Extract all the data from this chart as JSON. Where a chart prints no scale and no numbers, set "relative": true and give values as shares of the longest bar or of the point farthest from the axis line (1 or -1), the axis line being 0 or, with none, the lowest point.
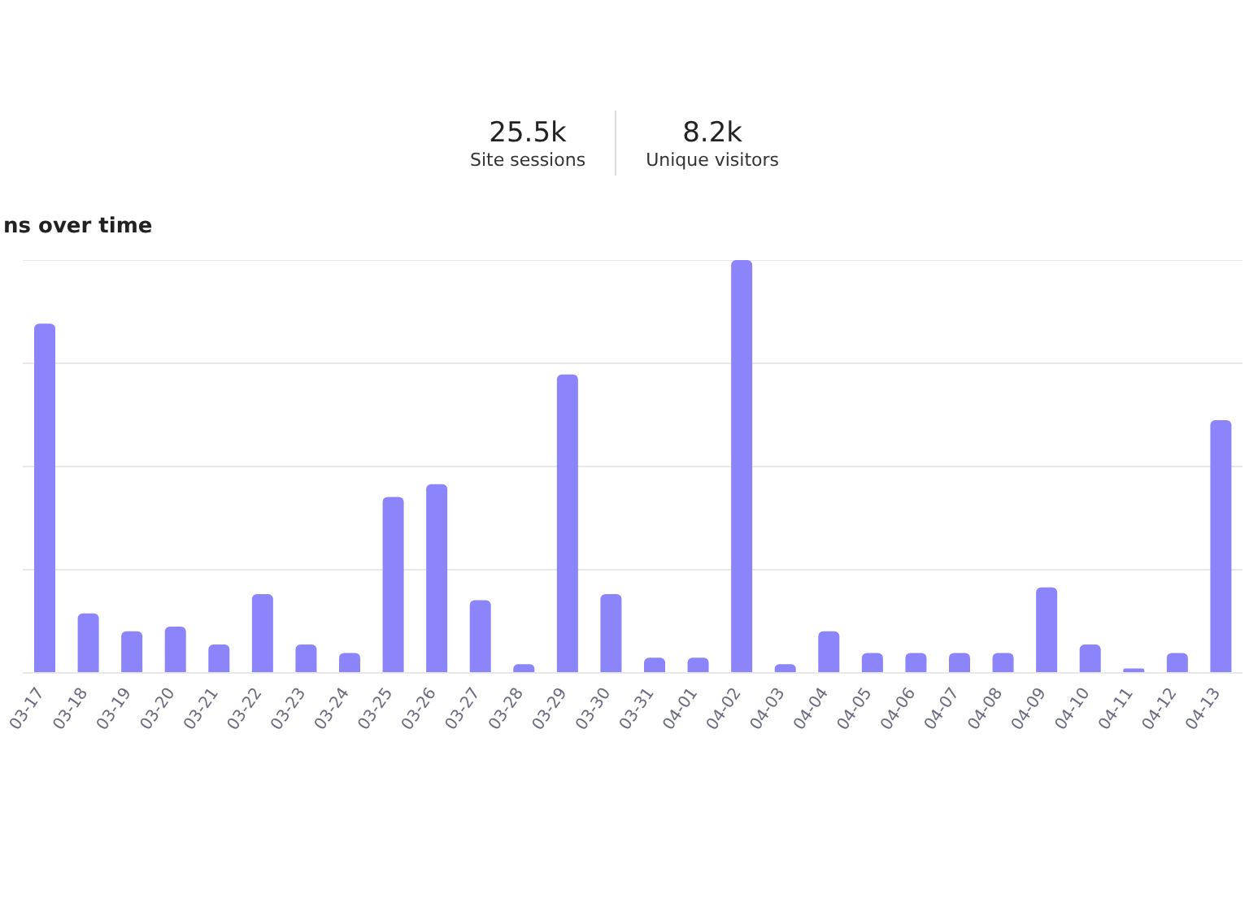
{
  "chart_data": {
    "type": "bar",
    "title": "ns over time",
    "annotations": [
      "25.5k",
      "Site sessions",
      "8.2k",
      "Unique visitors"
    ],
    "categories": [
      "03-17",
      "03-18",
      "03-19",
      "03-20",
      "03-21",
      "03-22",
      "03-23",
      "03-24",
      "03-25",
      "03-26",
      "03-27",
      "03-28",
      "03-29",
      "03-30",
      "03-31",
      "04-01",
      "04-02",
      "04-03",
      "04-04",
      "04-05",
      "04-06",
      "04-07",
      "04-08",
      "04-09",
      "04-10",
      "04-11",
      "04-12",
      "04-13"
    ],
    "values": [
      0.846,
      0.144,
      0.101,
      0.112,
      0.069,
      0.191,
      0.069,
      0.048,
      0.426,
      0.457,
      0.176,
      0.021,
      0.723,
      0.191,
      0.037,
      0.037,
      1,
      0.021,
      0.101,
      0.048,
      0.048,
      0.048,
      0.048,
      0.207,
      0.069,
      0.011,
      0.048,
      0.612
    ],
    "color": "#8b84fb",
    "relative": true,
    "grid": "y"
  }
}
